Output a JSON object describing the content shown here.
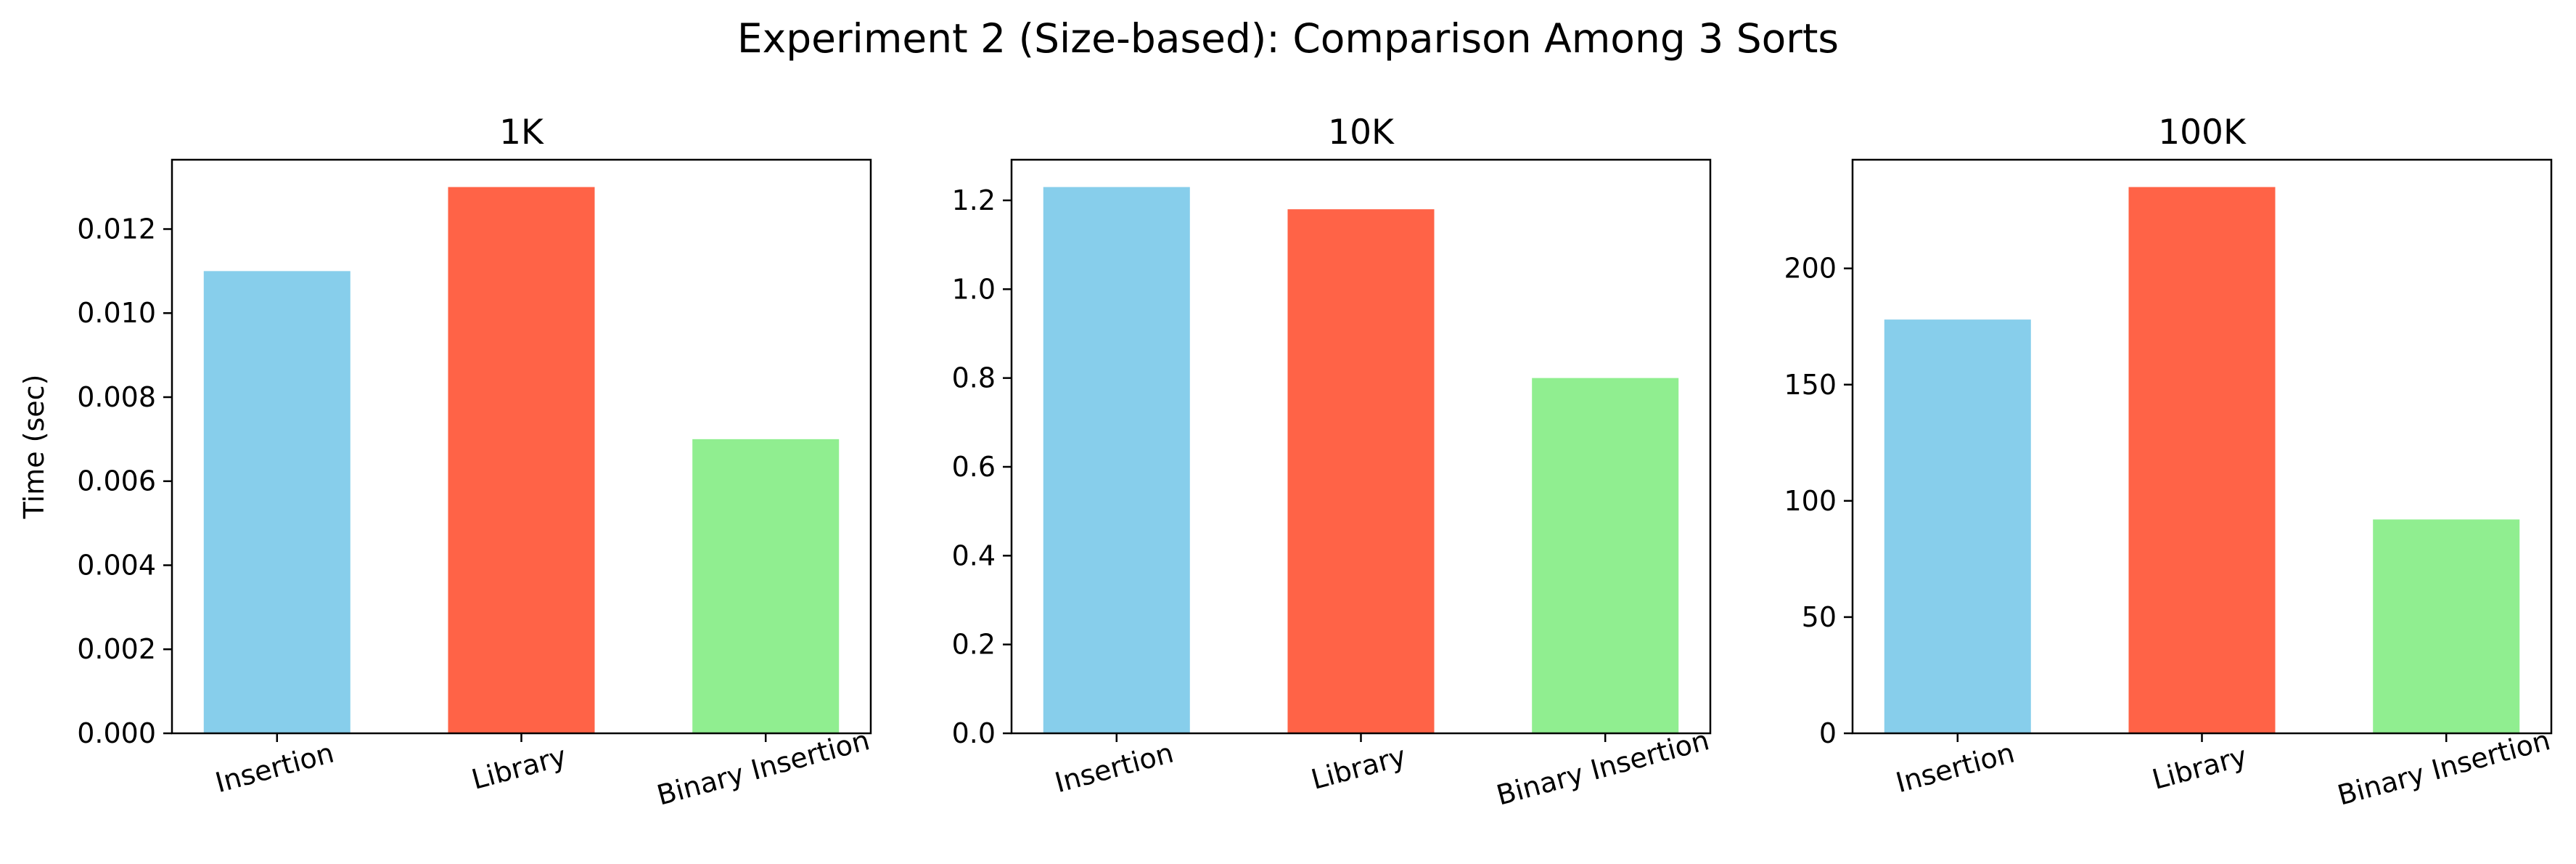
{
  "title": "Experiment 2 (Size-based): Comparison Among 3 Sorts",
  "ylabel": "Time (sec)",
  "colors": [
    "#87CEEB",
    "#FF6347",
    "#90EE90"
  ],
  "chart_data": [
    {
      "type": "bar",
      "title": "1K",
      "categories": [
        "Insertion",
        "Library",
        "Binary Insertion"
      ],
      "values": [
        0.011,
        0.013,
        0.007
      ],
      "ylim": [
        0,
        0.01365
      ],
      "yticks": [
        0,
        0.002,
        0.004,
        0.006,
        0.008,
        0.01,
        0.012
      ],
      "ytick_labels": [
        "0.000",
        "0.002",
        "0.004",
        "0.006",
        "0.008",
        "0.010",
        "0.012"
      ],
      "ylabel": "Time (sec)",
      "grid": false
    },
    {
      "type": "bar",
      "title": "10K",
      "categories": [
        "Insertion",
        "Library",
        "Binary Insertion"
      ],
      "values": [
        1.23,
        1.18,
        0.8
      ],
      "ylim": [
        0,
        1.2915
      ],
      "yticks": [
        0,
        0.2,
        0.4,
        0.6,
        0.8,
        1.0,
        1.2
      ],
      "ytick_labels": [
        "0.0",
        "0.2",
        "0.4",
        "0.6",
        "0.8",
        "1.0",
        "1.2"
      ],
      "grid": false
    },
    {
      "type": "bar",
      "title": "100K",
      "categories": [
        "Insertion",
        "Library",
        "Binary Insertion"
      ],
      "values": [
        178,
        235,
        92
      ],
      "ylim": [
        0,
        246.75
      ],
      "yticks": [
        0,
        50,
        100,
        150,
        200
      ],
      "ytick_labels": [
        "0",
        "50",
        "100",
        "150",
        "200"
      ],
      "grid": false
    }
  ]
}
